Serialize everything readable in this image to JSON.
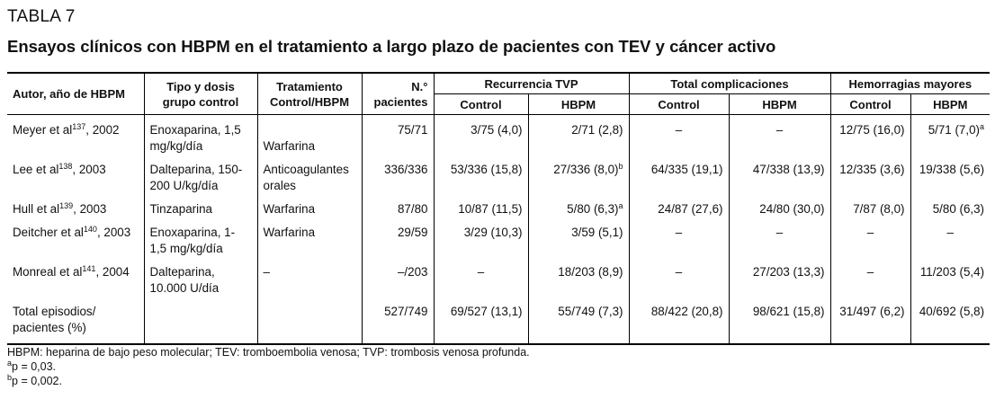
{
  "label": "TABLA 7",
  "title": "Ensayos clínicos con HBPM en el tratamiento a largo plazo de pacientes con TEV y cáncer activo",
  "headers": {
    "autor": "Autor, año de HBPM",
    "tipo": "Tipo y dosis grupo control",
    "tratamiento": "Tratamiento Control/HBPM",
    "n": "N.° pacientes",
    "groups": [
      "Recurrencia TVP",
      "Total complicaciones",
      "Hemorragias mayores"
    ],
    "sub": [
      "Control",
      "HBPM",
      "Control",
      "HBPM",
      "Control",
      "HBPM"
    ]
  },
  "rows": [
    {
      "autor": "Meyer et al",
      "ref": "137",
      "year": ", 2002",
      "tipo": "Enoxaparina, 1,5 mg/kg/día",
      "trat": "Warfarina",
      "n": "75/71",
      "rc": "3/75 (4,0)",
      "rh": "2/71 (2,8)",
      "rh_sup": "",
      "tc": "–",
      "th": "–",
      "hc": "12/75 (16,0)",
      "hh": "5/71 (7,0)",
      "hh_sup": "a"
    },
    {
      "autor": "Lee et al",
      "ref": "138",
      "year": ", 2003",
      "tipo": "Dalteparina, 150-200 U/kg/día",
      "trat": "Anticoagulantes orales",
      "n": "336/336",
      "rc": "53/336 (15,8)",
      "rh": "27/336 (8,0)",
      "rh_sup": "b",
      "tc": "64/335 (19,1)",
      "th": "47/338 (13,9)",
      "hc": "12/335 (3,6)",
      "hh": "19/338 (5,6)",
      "hh_sup": ""
    },
    {
      "autor": "Hull et al",
      "ref": "139",
      "year": ", 2003",
      "tipo": "Tinzaparina",
      "trat": "Warfarina",
      "n": "87/80",
      "rc": "10/87 (11,5)",
      "rh": "5/80 (6,3)",
      "rh_sup": "a",
      "tc": "24/87 (27,6)",
      "th": "24/80 (30,0)",
      "hc": "7/87 (8,0)",
      "hh": "5/80 (6,3)",
      "hh_sup": ""
    },
    {
      "autor": "Deitcher et al",
      "ref": "140",
      "year": ", 2003",
      "tipo": "Enoxaparina, 1-1,5 mg/kg/día",
      "trat": "Warfarina",
      "n": "29/59",
      "rc": "3/29 (10,3)",
      "rh": "3/59 (5,1)",
      "rh_sup": "",
      "tc": "–",
      "th": "–",
      "hc": "–",
      "hh": "–",
      "hh_sup": ""
    },
    {
      "autor": "Monreal et al",
      "ref": "141",
      "year": ", 2004",
      "tipo": "Dalteparina, 10.000 U/día",
      "trat": "–",
      "n": "–/203",
      "rc": "–",
      "rh": "18/203 (8,9)",
      "rh_sup": "",
      "tc": "–",
      "th": "27/203 (13,3)",
      "hc": "–",
      "hh": "11/203 (5,4)",
      "hh_sup": ""
    },
    {
      "autor": "Total episodios/ pacientes (%)",
      "ref": "",
      "year": "",
      "tipo": "",
      "trat": "",
      "n": "527/749",
      "rc": "69/527 (13,1)",
      "rh": "55/749 (7,3)",
      "rh_sup": "",
      "tc": "88/422 (20,8)",
      "th": "98/621 (15,8)",
      "hc": "31/497 (6,2)",
      "hh": "40/692 (5,8)",
      "hh_sup": ""
    }
  ],
  "notes": [
    "HBPM: heparina de bajo peso molecular; TEV: tromboembolia venosa; TVP: trombosis venosa profunda.",
    "p = 0,03.",
    "p = 0,002."
  ],
  "note_marks": [
    "a",
    "b"
  ]
}
